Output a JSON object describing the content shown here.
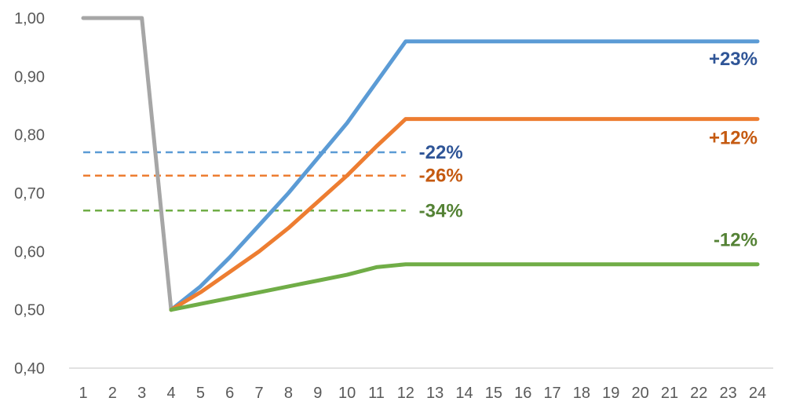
{
  "chart_data": {
    "type": "line",
    "title": "",
    "xlabel": "",
    "ylabel": "",
    "x": [
      1,
      2,
      3,
      4,
      5,
      6,
      7,
      8,
      9,
      10,
      11,
      12,
      13,
      14,
      15,
      16,
      17,
      18,
      19,
      20,
      21,
      22,
      23,
      24
    ],
    "xlim": [
      1,
      24
    ],
    "ylim": [
      0.4,
      1.0
    ],
    "y_ticks": [
      "0,40",
      "0,50",
      "0,60",
      "0,70",
      "0,80",
      "0,90",
      "1,00"
    ],
    "x_ticks": [
      "1",
      "2",
      "3",
      "4",
      "5",
      "6",
      "7",
      "8",
      "9",
      "10",
      "11",
      "12",
      "13",
      "14",
      "15",
      "16",
      "17",
      "18",
      "19",
      "20",
      "21",
      "22",
      "23",
      "24"
    ],
    "grid": false,
    "legend": "none",
    "series": [
      {
        "color": "#a6a6a6",
        "style": "solid",
        "points": [
          [
            1,
            1.0
          ],
          [
            2,
            1.0
          ],
          [
            3,
            1.0
          ],
          [
            4,
            0.5
          ]
        ]
      },
      {
        "color": "#5b9bd5",
        "style": "solid",
        "points": [
          [
            4,
            0.5
          ],
          [
            5,
            0.54
          ],
          [
            6,
            0.59
          ],
          [
            7,
            0.645
          ],
          [
            8,
            0.7
          ],
          [
            9,
            0.76
          ],
          [
            10,
            0.82
          ],
          [
            11,
            0.89
          ],
          [
            12,
            0.96
          ],
          [
            13,
            0.96
          ],
          [
            14,
            0.96
          ],
          [
            15,
            0.96
          ],
          [
            16,
            0.96
          ],
          [
            17,
            0.96
          ],
          [
            18,
            0.96
          ],
          [
            19,
            0.96
          ],
          [
            20,
            0.96
          ],
          [
            21,
            0.96
          ],
          [
            22,
            0.96
          ],
          [
            23,
            0.96
          ],
          [
            24,
            0.96
          ]
        ]
      },
      {
        "color": "#ed7d31",
        "style": "solid",
        "points": [
          [
            4,
            0.5
          ],
          [
            5,
            0.53
          ],
          [
            6,
            0.565
          ],
          [
            7,
            0.6
          ],
          [
            8,
            0.64
          ],
          [
            9,
            0.685
          ],
          [
            10,
            0.73
          ],
          [
            11,
            0.78
          ],
          [
            12,
            0.827
          ],
          [
            13,
            0.827
          ],
          [
            14,
            0.827
          ],
          [
            15,
            0.827
          ],
          [
            16,
            0.827
          ],
          [
            17,
            0.827
          ],
          [
            18,
            0.827
          ],
          [
            19,
            0.827
          ],
          [
            20,
            0.827
          ],
          [
            21,
            0.827
          ],
          [
            22,
            0.827
          ],
          [
            23,
            0.827
          ],
          [
            24,
            0.827
          ]
        ]
      },
      {
        "color": "#70ad47",
        "style": "solid",
        "points": [
          [
            4,
            0.5
          ],
          [
            5,
            0.51
          ],
          [
            6,
            0.52
          ],
          [
            7,
            0.53
          ],
          [
            8,
            0.54
          ],
          [
            9,
            0.55
          ],
          [
            10,
            0.56
          ],
          [
            11,
            0.573
          ],
          [
            12,
            0.578
          ],
          [
            13,
            0.578
          ],
          [
            14,
            0.578
          ],
          [
            15,
            0.578
          ],
          [
            16,
            0.578
          ],
          [
            17,
            0.578
          ],
          [
            18,
            0.578
          ],
          [
            19,
            0.578
          ],
          [
            20,
            0.578
          ],
          [
            21,
            0.578
          ],
          [
            22,
            0.578
          ],
          [
            23,
            0.578
          ],
          [
            24,
            0.578
          ]
        ]
      },
      {
        "color": "#5b9bd5",
        "style": "dashed",
        "points": [
          [
            1,
            0.77
          ],
          [
            12,
            0.77
          ]
        ]
      },
      {
        "color": "#ed7d31",
        "style": "dashed",
        "points": [
          [
            1,
            0.73
          ],
          [
            12,
            0.73
          ]
        ]
      },
      {
        "color": "#70ad47",
        "style": "dashed",
        "points": [
          [
            1,
            0.67
          ],
          [
            12,
            0.67
          ]
        ]
      }
    ],
    "annotations": [
      {
        "text": "+23%",
        "x": 24,
        "y": 0.93,
        "anchor": "end",
        "color": "#2f5597"
      },
      {
        "text": "+12%",
        "x": 24,
        "y": 0.795,
        "anchor": "end",
        "color": "#c55a11"
      },
      {
        "text": "-12%",
        "x": 24,
        "y": 0.62,
        "anchor": "end",
        "color": "#548235"
      },
      {
        "text": "-22%",
        "x": 12.45,
        "y": 0.77,
        "anchor": "start",
        "color": "#2f5597"
      },
      {
        "text": "-26%",
        "x": 12.45,
        "y": 0.73,
        "anchor": "start",
        "color": "#c55a11"
      },
      {
        "text": "-34%",
        "x": 12.45,
        "y": 0.67,
        "anchor": "start",
        "color": "#548235"
      }
    ]
  }
}
